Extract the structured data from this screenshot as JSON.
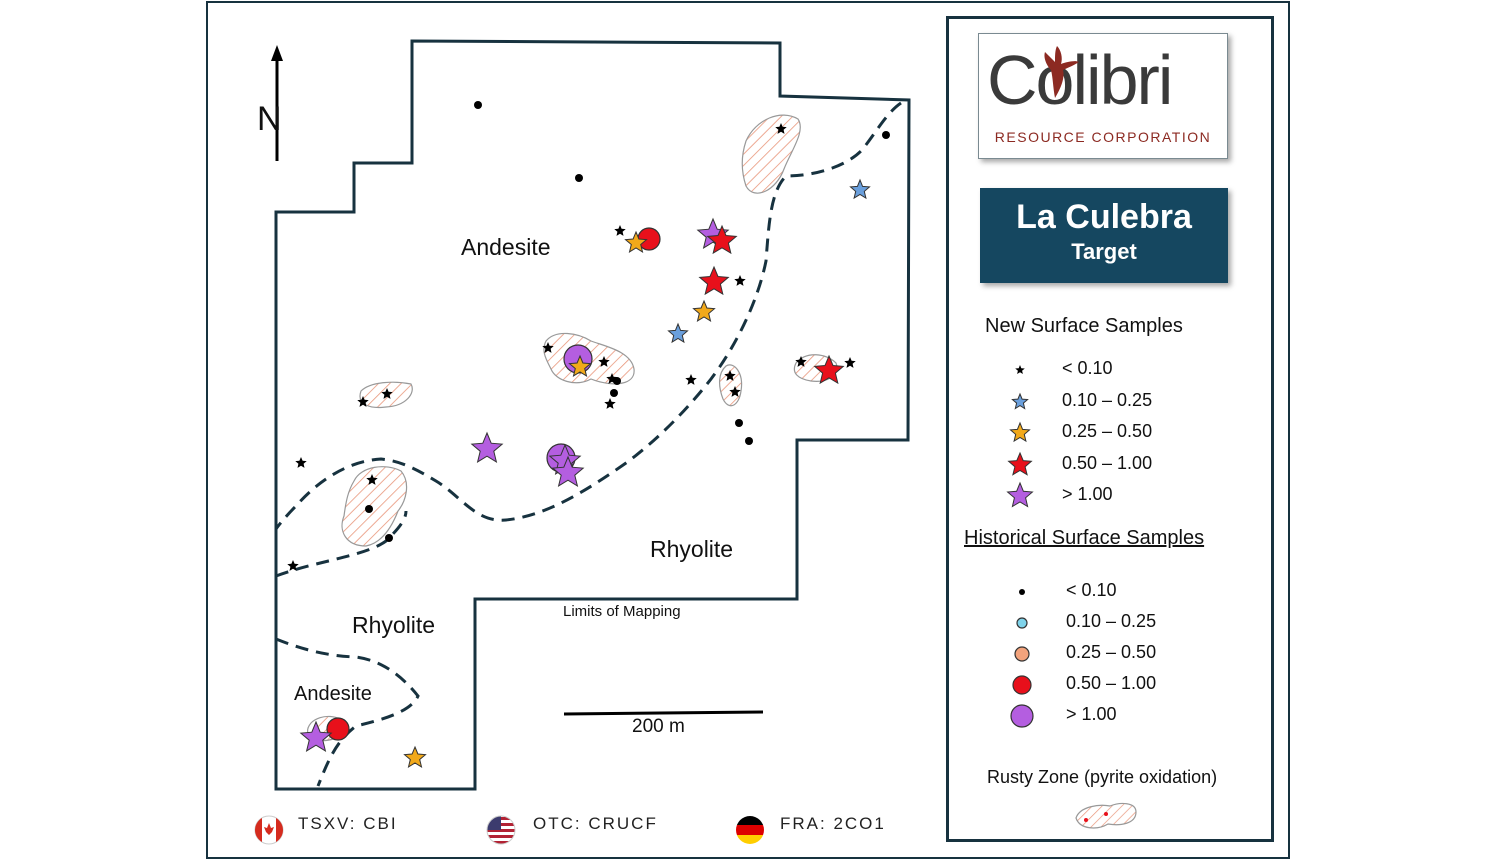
{
  "map": {
    "north_label": "N",
    "rock_labels": {
      "andesite_main": "Andesite",
      "rhyolite_right": "Rhyolite",
      "rhyolite_left": "Rhyolite",
      "andesite_lower": "Andesite"
    },
    "limits_label": "Limits of Mapping",
    "scale_label": "200 m",
    "colors": {
      "outline": "#17323f",
      "lt010": "#000000",
      "r010_025": "#6a9fdc",
      "r025_050": "#f2a91a",
      "r050_100": "#e8101b",
      "gt100": "#b45ee0",
      "hist010_025": "#7fd3ea",
      "hist025_050": "#f3a37c",
      "rusty_hatch": "#e9967a"
    }
  },
  "legend": {
    "logo": {
      "word": "Colibri",
      "subtitle": "RESOURCE CORPORATION"
    },
    "target": {
      "title": "La Culebra",
      "subtitle": "Target"
    },
    "new_heading": "New Surface Samples",
    "new_items": [
      {
        "label": "< 0.10",
        "symbol": "star-black"
      },
      {
        "label": "0.10 – 0.25",
        "symbol": "star-blue"
      },
      {
        "label": "0.25 – 0.50",
        "symbol": "star-orange"
      },
      {
        "label": "0.50 – 1.00",
        "symbol": "star-red"
      },
      {
        "label": "> 1.00",
        "symbol": "star-purple"
      }
    ],
    "hist_heading": "Historical Surface Samples",
    "hist_items": [
      {
        "label": "< 0.10",
        "symbol": "circle-black"
      },
      {
        "label": "0.10 – 0.25",
        "symbol": "circle-cyan"
      },
      {
        "label": "0.25 – 0.50",
        "symbol": "circle-salmon"
      },
      {
        "label": "0.50 – 1.00",
        "symbol": "circle-red"
      },
      {
        "label": "> 1.00",
        "symbol": "circle-purple"
      }
    ],
    "rusty_label": "Rusty Zone (pyrite oxidation)"
  },
  "footer": {
    "tsxv": "TSXV: CBI",
    "otc": "OTC: CRUCF",
    "fra": "FRA: 2CO1"
  }
}
